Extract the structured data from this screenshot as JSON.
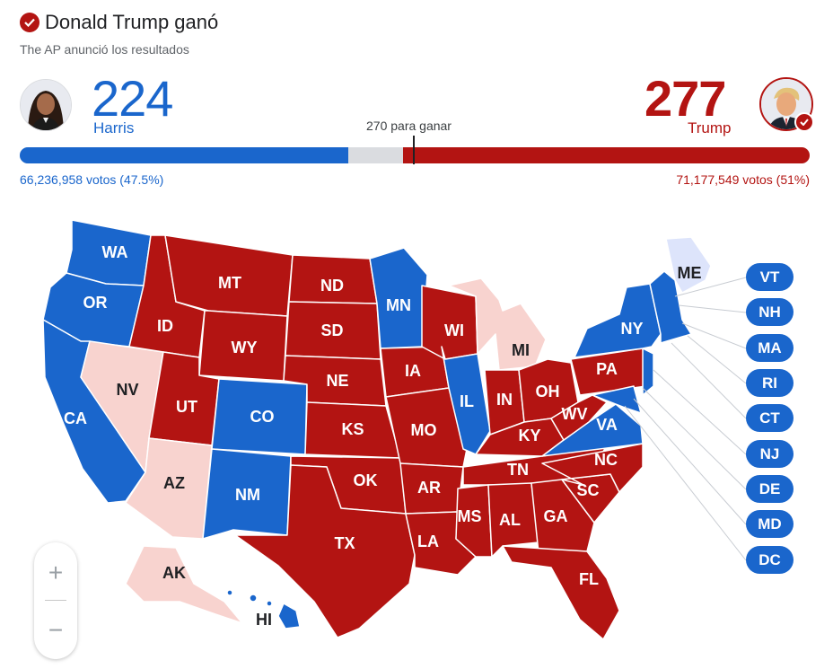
{
  "header": {
    "title": "Donald Trump ganó",
    "subtitle": "The AP anunció los resultados"
  },
  "candidates": {
    "harris": {
      "electoral_votes": "224",
      "name": "Harris",
      "popular": "66,236,958 votos (47.5%)",
      "color": "#1a66cc"
    },
    "trump": {
      "electoral_votes": "277",
      "name": "Trump",
      "popular": "71,177,549 votos (51%)",
      "color": "#b31412"
    }
  },
  "threshold_label": "270 para ganar",
  "electoral_total": 538,
  "colors": {
    "dem": "#1a66cc",
    "rep": "#b31412",
    "rep_lead": "#f8d3cf",
    "dem_lead": "#dde4fb",
    "undecided": "#dadce0"
  },
  "states": {
    "WA": "WA",
    "OR": "OR",
    "CA": "CA",
    "NV": "NV",
    "ID": "ID",
    "MT": "MT",
    "WY": "WY",
    "UT": "UT",
    "AZ": "AZ",
    "CO": "CO",
    "NM": "NM",
    "ND": "ND",
    "SD": "SD",
    "NE": "NE",
    "KS": "KS",
    "OK": "OK",
    "TX": "TX",
    "MN": "MN",
    "IA": "IA",
    "MO": "MO",
    "AR": "AR",
    "LA": "LA",
    "WI": "WI",
    "IL": "IL",
    "MI": "MI",
    "IN": "IN",
    "OH": "OH",
    "KY": "KY",
    "TN": "TN",
    "MS": "MS",
    "AL": "AL",
    "GA": "GA",
    "FL": "FL",
    "SC": "SC",
    "NC": "NC",
    "VA": "VA",
    "WV": "WV",
    "PA": "PA",
    "NY": "NY",
    "ME": "ME",
    "AK": "AK",
    "HI": "HI"
  },
  "small_states": [
    "VT",
    "NH",
    "MA",
    "RI",
    "CT",
    "NJ",
    "DE",
    "MD",
    "DC"
  ],
  "zoom": {
    "in": "+",
    "out": "−"
  }
}
